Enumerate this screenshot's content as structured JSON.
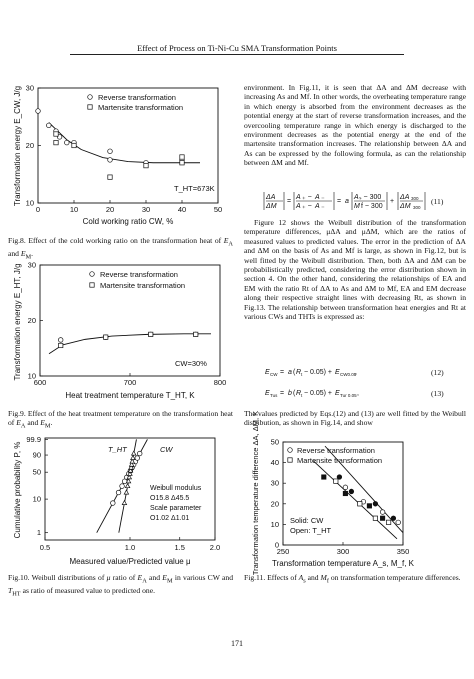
{
  "header": {
    "title": "Effect of Process on Ti-Ni-Cu SMA Transformation Points"
  },
  "page_number": "171",
  "fig8": {
    "caption": "Fig.8.  Effect of the cold working ratio on the transformation heat of E_A and E_M.",
    "caption_parts": [
      "Fig.8.  Effect of the cold working ratio on the transformation heat of ",
      "E",
      "A",
      " and ",
      "E",
      "M",
      "."
    ]
  },
  "fig9": {
    "caption_parts": [
      "Fig.9.  Effect of the heat treatment temperature on the transformation heat of ",
      "E",
      "A",
      " and ",
      "E",
      "M",
      "."
    ]
  },
  "fig10": {
    "caption": "Fig.10. Weibull distributions of μ ratio of E_A and E_M in various CW and T_HT as ratio of measured value to predicted one.",
    "caption_parts": [
      "Fig.10. Weibull distributions of ",
      "μ",
      " ratio of ",
      "E",
      "A",
      " and ",
      "E",
      "M",
      " in various CW and ",
      "T",
      "HT",
      " as ratio of measured value to predicted one."
    ]
  },
  "fig11": {
    "caption_parts": [
      "Fig.11.  Effects of ",
      "A",
      "s",
      " and ",
      "M",
      "f",
      " on transformation temperature differences."
    ]
  },
  "right_col": {
    "p1": "environment. In Fig.11, it is seen that ΔA and ΔM decrease with increasing As and Mf. In other words, the overheating temperature range in which energy is absorbed from the environment decreases as the potential energy at the start of reverse transformation increases, and the overcooling temperature range in which energy is discharged to the environment decreases as the potential energy at the end of the martensite transformation increases. The relationship between ΔA and As can be expressed by the following formula, as can the relationship between ΔM and Mf.",
    "eq11_num": "(11)",
    "p2": "Figure 12 shows the Weibull distribution of the transformation temperature differences, μΔA and μΔM, which are the ratios of measured values to predicted values. The error in the prediction of ΔA and ΔM on the basis of As and Mf is large, as shown in Fig.12, but is well fitted by the Weibull distribution. Then, both ΔA and ΔM can be probabilistically predicted, considering the error distribution shown in section 4. On the other hand, considering the relationships of EA and EM with the ratio Rt of ΔA to As and ΔM to Mf, EA and EM decrease along their respective straight lines with decreasing Rt, as shown in Fig.13. The relationship between transformation heat energies and Rt at various CWs and THTs is expressed as:",
    "eq12_num": "(12)",
    "eq13_num": "(13)",
    "p3": "The values predicted by Eqs.(12) and (13) are well fitted by the Weibull distribution, as shown in Fig.14, and show"
  },
  "chart_data": [
    {
      "id": "fig8",
      "type": "scatter",
      "xlabel": "Cold working ratio CW, %",
      "ylabel": "Transformation energy E_CW, J/g",
      "xlim": [
        0,
        50
      ],
      "ylim": [
        10,
        30
      ],
      "xticks": [
        "0",
        "10",
        "20",
        "30",
        "40",
        "50"
      ],
      "yticks": [
        "10",
        "20",
        "30"
      ],
      "annotation": "T_HT=673K",
      "series": [
        {
          "name": "Reverse transformation",
          "marker": "circle",
          "x": [
            0,
            3,
            5,
            6,
            8,
            10,
            20,
            20,
            30,
            40
          ],
          "y": [
            26,
            23.5,
            22.5,
            21.5,
            20.5,
            20.5,
            19,
            17.5,
            17,
            17.5
          ]
        },
        {
          "name": "Martensite transformation",
          "marker": "square",
          "x": [
            5,
            5,
            10,
            20,
            30,
            40,
            40
          ],
          "y": [
            22,
            20.5,
            20,
            14.5,
            16.5,
            17,
            18
          ]
        }
      ],
      "fit_curve": {
        "x": [
          3,
          8,
          12,
          18,
          25,
          32,
          45
        ],
        "y": [
          24,
          21,
          19.3,
          17.9,
          17.2,
          17,
          17
        ]
      }
    },
    {
      "id": "fig9",
      "type": "scatter",
      "xlabel": "Heat treatment temperature T_HT, K",
      "ylabel": "Transformation energy E_HT, J/g",
      "xlim": [
        600,
        800
      ],
      "ylim": [
        10,
        30
      ],
      "xticks": [
        "600",
        "700",
        "800"
      ],
      "yticks": [
        "10",
        "20",
        "30"
      ],
      "annotation": "CW=30%",
      "series": [
        {
          "name": "Reverse transformation",
          "marker": "circle",
          "x": [
            623,
            673,
            723,
            773
          ],
          "y": [
            16.5,
            17,
            17.5,
            17.5
          ]
        },
        {
          "name": "Martensite transformation",
          "marker": "square",
          "x": [
            623,
            673,
            723,
            773
          ],
          "y": [
            15.5,
            17,
            17.5,
            17.5
          ]
        }
      ],
      "fit_curve": {
        "x": [
          610,
          625,
          650,
          680,
          720,
          760,
          790
        ],
        "y": [
          14,
          15.6,
          16.6,
          17.2,
          17.5,
          17.6,
          17.6
        ]
      }
    },
    {
      "id": "fig10",
      "type": "scatter",
      "xlabel": "Measured value/Predicted value μ",
      "ylabel": "Cumulative probability P, %",
      "xlim": [
        0.5,
        2.0
      ],
      "xticks": [
        "0.5",
        "1.0",
        "1.5",
        "2.0"
      ],
      "yticks": [
        "99.9",
        "90",
        "50",
        "10",
        "1"
      ],
      "legend": [
        "T_HT",
        "CW"
      ],
      "weibull_modulus_label": "Weibull modulus",
      "weibull_modulus": [
        "15.8",
        "45.5"
      ],
      "scale_parameter_label": "Scale parameter",
      "scale_parameter": [
        "1.02",
        "1.01"
      ]
    },
    {
      "id": "fig11",
      "type": "scatter",
      "xlabel": "Transformation temperature A_s, M_f, K",
      "ylabel": "Transformation temperature difference ΔA, ΔM, K",
      "xlim": [
        250,
        350
      ],
      "ylim": [
        0,
        50
      ],
      "xticks": [
        "250",
        "300",
        "350"
      ],
      "yticks": [
        "0",
        "10",
        "20",
        "30",
        "40",
        "50"
      ],
      "legend_markers": [
        "Reverse transformation",
        "Martensite transformation"
      ],
      "legend_fill": [
        "Solid: CW",
        "Open: T_HT"
      ],
      "series": [
        {
          "name": "Reverse transformation",
          "marker": "circle",
          "x": [
            297,
            302,
            307,
            317,
            327,
            333,
            342,
            346
          ],
          "y": [
            33,
            28,
            26,
            21,
            20,
            16,
            13,
            11
          ]
        },
        {
          "name": "Martensite transformation",
          "marker": "square",
          "x": [
            284,
            294,
            302,
            314,
            322,
            327,
            333,
            338
          ],
          "y": [
            33,
            31,
            25,
            20,
            19,
            13,
            13,
            11
          ]
        }
      ]
    }
  ]
}
